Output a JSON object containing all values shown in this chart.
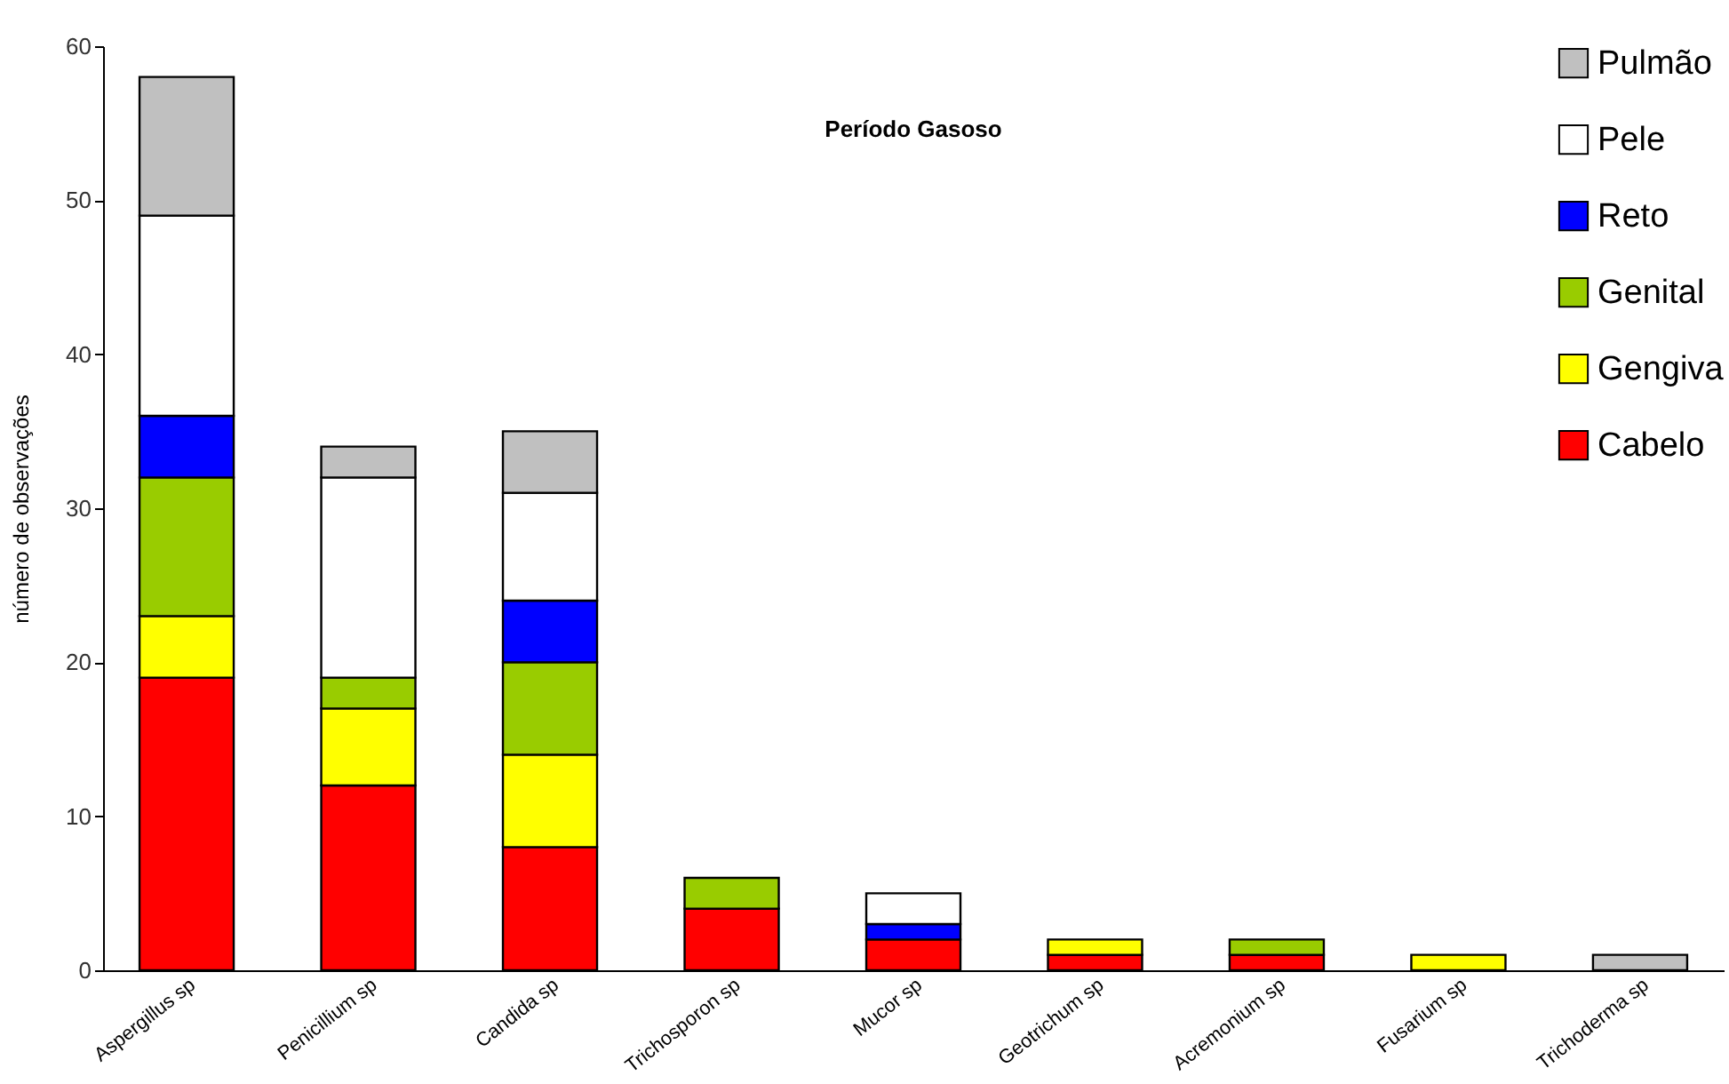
{
  "chart_data": {
    "type": "bar",
    "title": "Período Gasoso",
    "ylabel": "número de observações",
    "stacked": true,
    "legend": "top right",
    "grid": false,
    "categories": [
      "Aspergillus sp",
      "Penicillium sp",
      "Candida sp",
      "Trichosporon sp",
      "Mucor sp",
      "Geotrichum sp",
      "Acremonium sp",
      "Fusarium sp",
      "Trichoderma sp"
    ],
    "ylim": [
      0,
      60
    ],
    "yticks": [
      0,
      10,
      20,
      30,
      40,
      50,
      60
    ],
    "series": [
      {
        "name": "Cabelo",
        "color": "#ff0000",
        "values": [
          19,
          12,
          8,
          4,
          2,
          1,
          1,
          null,
          null
        ]
      },
      {
        "name": "Gengiva",
        "color": "#ffff00",
        "values": [
          4,
          5,
          6,
          null,
          null,
          1,
          null,
          1,
          null
        ]
      },
      {
        "name": "Genital",
        "color": "#99cc00",
        "values": [
          9,
          2,
          6,
          2,
          null,
          null,
          1,
          null,
          null
        ]
      },
      {
        "name": "Reto",
        "color": "#0000ff",
        "values": [
          4,
          null,
          4,
          null,
          1,
          null,
          null,
          null,
          null
        ]
      },
      {
        "name": "Pele",
        "color": "#ffffff",
        "values": [
          13,
          13,
          7,
          null,
          2,
          null,
          null,
          null,
          null
        ]
      },
      {
        "name": "Pulmão",
        "color": "#c0c0c0",
        "values": [
          9,
          2,
          4,
          null,
          null,
          null,
          null,
          null,
          1
        ]
      }
    ]
  }
}
